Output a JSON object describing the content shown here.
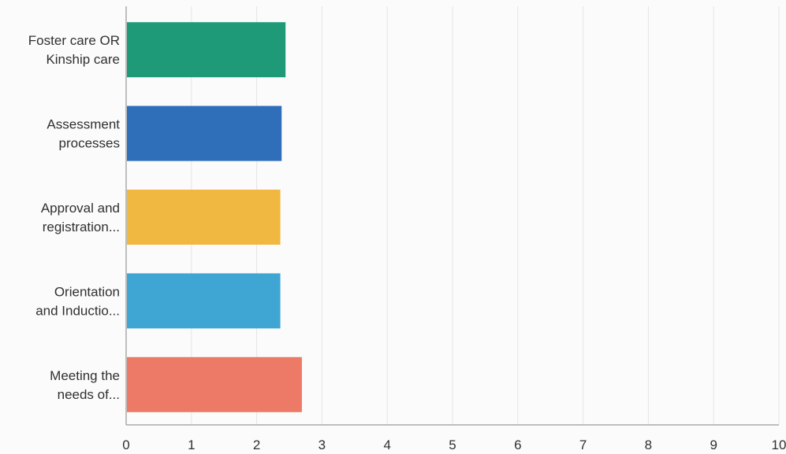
{
  "chart_data": {
    "type": "bar",
    "orientation": "horizontal",
    "categories": [
      [
        "Foster care OR",
        "Kinship care"
      ],
      [
        "Assessment",
        "processes"
      ],
      [
        "Approval and",
        "registration..."
      ],
      [
        "Orientation",
        "and Inductio..."
      ],
      [
        "Meeting the",
        "needs of..."
      ]
    ],
    "values": [
      2.43,
      2.37,
      2.35,
      2.35,
      2.68
    ],
    "colors": [
      "#1f9a78",
      "#2f6fba",
      "#f0b841",
      "#3fa6d4",
      "#ec7a66"
    ],
    "xlim": [
      0,
      10
    ],
    "xticks": [
      "0",
      "1",
      "2",
      "3",
      "4",
      "5",
      "6",
      "7",
      "8",
      "9",
      "10"
    ],
    "grid": true,
    "title": "",
    "xlabel": "",
    "ylabel": ""
  }
}
